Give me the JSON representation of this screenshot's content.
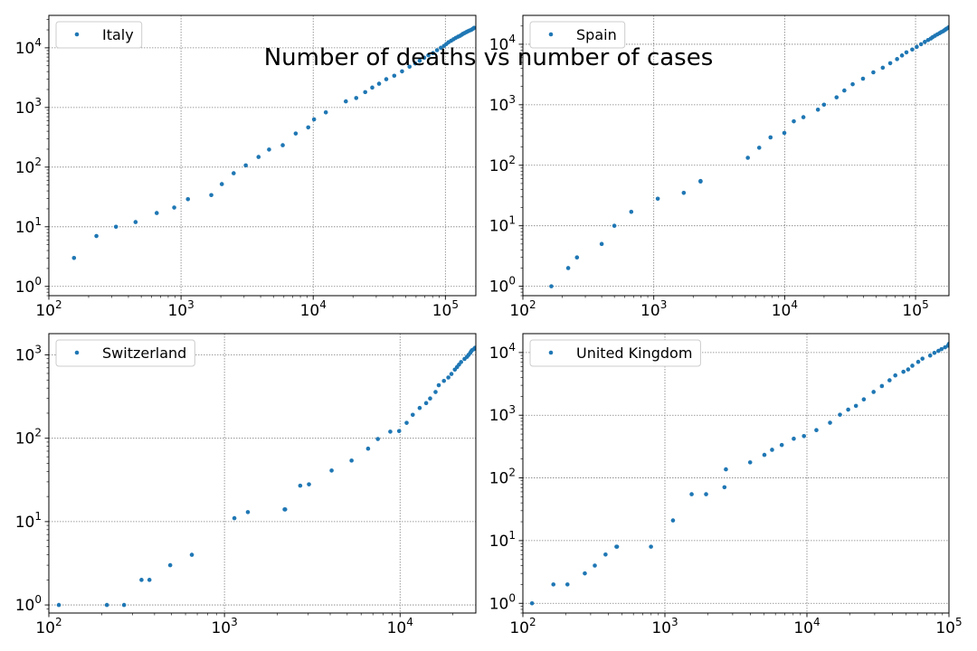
{
  "figure": {
    "title": "Number of deaths vs number of cases",
    "marker_color": "#1f77b4",
    "grid_color": "#808080"
  },
  "chart_data": [
    {
      "type": "scatter",
      "name": "Italy",
      "xscale": "log",
      "yscale": "log",
      "xlim": [
        100,
        170000
      ],
      "ylim": [
        0.7,
        35000
      ],
      "xticks": [
        100,
        1000,
        10000,
        100000
      ],
      "xtick_labels": [
        "10^2",
        "10^3",
        "10^4",
        "10^5"
      ],
      "yticks": [
        1,
        10,
        100,
        1000,
        10000
      ],
      "ytick_labels": [
        "10^0",
        "10^1",
        "10^2",
        "10^3",
        "10^4"
      ],
      "grid": true,
      "legend": "top-left",
      "points": [
        [
          155,
          3
        ],
        [
          229,
          7
        ],
        [
          322,
          10
        ],
        [
          453,
          12
        ],
        [
          655,
          17
        ],
        [
          888,
          21
        ],
        [
          1128,
          29
        ],
        [
          1694,
          34
        ],
        [
          2036,
          52
        ],
        [
          2502,
          79
        ],
        [
          3089,
          107
        ],
        [
          3858,
          148
        ],
        [
          4636,
          197
        ],
        [
          5883,
          233
        ],
        [
          7375,
          366
        ],
        [
          9172,
          463
        ],
        [
          10149,
          631
        ],
        [
          12462,
          827
        ],
        [
          17660,
          1266
        ],
        [
          21157,
          1441
        ],
        [
          24747,
          1809
        ],
        [
          27980,
          2158
        ],
        [
          31506,
          2503
        ],
        [
          35713,
          2978
        ],
        [
          41035,
          3405
        ],
        [
          47021,
          4032
        ],
        [
          53578,
          4825
        ],
        [
          59138,
          5476
        ],
        [
          63927,
          6077
        ],
        [
          69176,
          6820
        ],
        [
          74386,
          7503
        ],
        [
          80589,
          8165
        ],
        [
          86498,
          9134
        ],
        [
          92472,
          10023
        ],
        [
          97689,
          10779
        ],
        [
          101739,
          11591
        ],
        [
          105792,
          12428
        ],
        [
          110574,
          13155
        ],
        [
          115242,
          13915
        ],
        [
          119827,
          14681
        ],
        [
          124632,
          15362
        ],
        [
          128948,
          15887
        ],
        [
          132547,
          16523
        ],
        [
          135586,
          17127
        ],
        [
          139422,
          17669
        ],
        [
          143626,
          18279
        ],
        [
          147577,
          18849
        ],
        [
          152271,
          19468
        ],
        [
          156363,
          19899
        ],
        [
          159516,
          20465
        ],
        [
          162488,
          21067
        ],
        [
          165155,
          21645
        ]
      ]
    },
    {
      "type": "scatter",
      "name": "Spain",
      "xscale": "log",
      "yscale": "log",
      "xlim": [
        100,
        180000
      ],
      "ylim": [
        0.7,
        30000
      ],
      "xticks": [
        100,
        1000,
        10000,
        100000
      ],
      "xtick_labels": [
        "10^2",
        "10^3",
        "10^4",
        "10^5"
      ],
      "yticks": [
        1,
        10,
        100,
        1000,
        10000
      ],
      "ytick_labels": [
        "10^0",
        "10^1",
        "10^2",
        "10^3",
        "10^4"
      ],
      "grid": true,
      "legend": "top-left",
      "points": [
        [
          165,
          1
        ],
        [
          222,
          2
        ],
        [
          259,
          3
        ],
        [
          400,
          5
        ],
        [
          500,
          10
        ],
        [
          673,
          17
        ],
        [
          1073,
          28
        ],
        [
          1695,
          35
        ],
        [
          2277,
          54
        ],
        [
          2277,
          55
        ],
        [
          5232,
          133
        ],
        [
          6391,
          195
        ],
        [
          7798,
          289
        ],
        [
          9942,
          342
        ],
        [
          11748,
          533
        ],
        [
          13910,
          623
        ],
        [
          17963,
          830
        ],
        [
          19980,
          1002
        ],
        [
          24926,
          1326
        ],
        [
          28572,
          1720
        ],
        [
          33089,
          2182
        ],
        [
          39673,
          2696
        ],
        [
          47610,
          3434
        ],
        [
          56188,
          4089
        ],
        [
          64059,
          4858
        ],
        [
          72248,
          5690
        ],
        [
          78797,
          6528
        ],
        [
          85195,
          7340
        ],
        [
          94417,
          8189
        ],
        [
          102136,
          9053
        ],
        [
          110238,
          10003
        ],
        [
          117710,
          10935
        ],
        [
          124736,
          11744
        ],
        [
          130759,
          12418
        ],
        [
          135032,
          13055
        ],
        [
          140510,
          13798
        ],
        [
          146690,
          14555
        ],
        [
          152446,
          15238
        ],
        [
          157022,
          15843
        ],
        [
          161852,
          16353
        ],
        [
          166019,
          16972
        ],
        [
          169496,
          17489
        ],
        [
          172541,
          18056
        ],
        [
          177644,
          18708
        ],
        [
          180000,
          19130
        ]
      ]
    },
    {
      "type": "scatter",
      "name": "Switzerland",
      "xscale": "log",
      "yscale": "log",
      "xlim": [
        100,
        27000
      ],
      "ylim": [
        0.8,
        1800
      ],
      "xticks": [
        100,
        1000,
        10000
      ],
      "xtick_labels": [
        "10^2",
        "10^3",
        "10^4"
      ],
      "yticks": [
        1,
        10,
        100,
        1000
      ],
      "ytick_labels": [
        "10^0",
        "10^1",
        "10^2",
        "10^3"
      ],
      "grid": true,
      "legend": "top-left",
      "points": [
        [
          114,
          1
        ],
        [
          214,
          1
        ],
        [
          268,
          1
        ],
        [
          337,
          2
        ],
        [
          374,
          2
        ],
        [
          491,
          3
        ],
        [
          652,
          4
        ],
        [
          1139,
          11
        ],
        [
          1359,
          13
        ],
        [
          2200,
          14
        ],
        [
          2217,
          14
        ],
        [
          2700,
          27
        ],
        [
          3028,
          28
        ],
        [
          4075,
          41
        ],
        [
          5294,
          54
        ],
        [
          6575,
          75
        ],
        [
          7474,
          98
        ],
        [
          8795,
          120
        ],
        [
          9877,
          122
        ],
        [
          10897,
          153
        ],
        [
          11811,
          191
        ],
        [
          12928,
          231
        ],
        [
          14076,
          264
        ],
        [
          14829,
          300
        ],
        [
          15922,
          359
        ],
        [
          16605,
          433
        ],
        [
          17768,
          488
        ],
        [
          18827,
          536
        ],
        [
          19606,
          591
        ],
        [
          20505,
          666
        ],
        [
          21100,
          715
        ],
        [
          21657,
          765
        ],
        [
          22253,
          821
        ],
        [
          23280,
          895
        ],
        [
          24051,
          948
        ],
        [
          24551,
          1002
        ],
        [
          25107,
          1059
        ],
        [
          25415,
          1106
        ],
        [
          25688,
          1138
        ],
        [
          26336,
          1174
        ],
        [
          26732,
          1217
        ]
      ]
    },
    {
      "type": "scatter",
      "name": "United Kingdom",
      "xscale": "log",
      "yscale": "log",
      "xlim": [
        100,
        100000
      ],
      "ylim": [
        0.7,
        20000
      ],
      "xticks": [
        100,
        1000,
        10000,
        100000
      ],
      "xtick_labels": [
        "10^2",
        "10^3",
        "10^4",
        "10^5"
      ],
      "yticks": [
        1,
        10,
        100,
        1000,
        10000
      ],
      "ytick_labels": [
        "10^0",
        "10^1",
        "10^2",
        "10^3",
        "10^4"
      ],
      "grid": true,
      "legend": "top-left",
      "points": [
        [
          116,
          1
        ],
        [
          164,
          2
        ],
        [
          206,
          2
        ],
        [
          273,
          3
        ],
        [
          321,
          4
        ],
        [
          382,
          6
        ],
        [
          456,
          8
        ],
        [
          460,
          8
        ],
        [
          798,
          8
        ],
        [
          1140,
          21
        ],
        [
          1543,
          55
        ],
        [
          1950,
          55
        ],
        [
          2626,
          71
        ],
        [
          2689,
          137
        ],
        [
          3983,
          177
        ],
        [
          5018,
          233
        ],
        [
          5683,
          281
        ],
        [
          6650,
          335
        ],
        [
          8077,
          422
        ],
        [
          9529,
          465
        ],
        [
          11658,
          578
        ],
        [
          14543,
          759
        ],
        [
          17089,
          1019
        ],
        [
          19522,
          1228
        ],
        [
          22141,
          1408
        ],
        [
          25150,
          1789
        ],
        [
          29474,
          2352
        ],
        [
          33718,
          2921
        ],
        [
          38168,
          3605
        ],
        [
          41903,
          4313
        ],
        [
          47806,
          4934
        ],
        [
          51608,
          5373
        ],
        [
          55242,
          6159
        ],
        [
          60733,
          7097
        ],
        [
          65077,
          7978
        ],
        [
          73758,
          8958
        ],
        [
          78991,
          9875
        ],
        [
          84279,
          10612
        ],
        [
          88621,
          11329
        ],
        [
          93873,
          12107
        ],
        [
          98476,
          12868
        ],
        [
          100000,
          13729
        ]
      ]
    }
  ]
}
